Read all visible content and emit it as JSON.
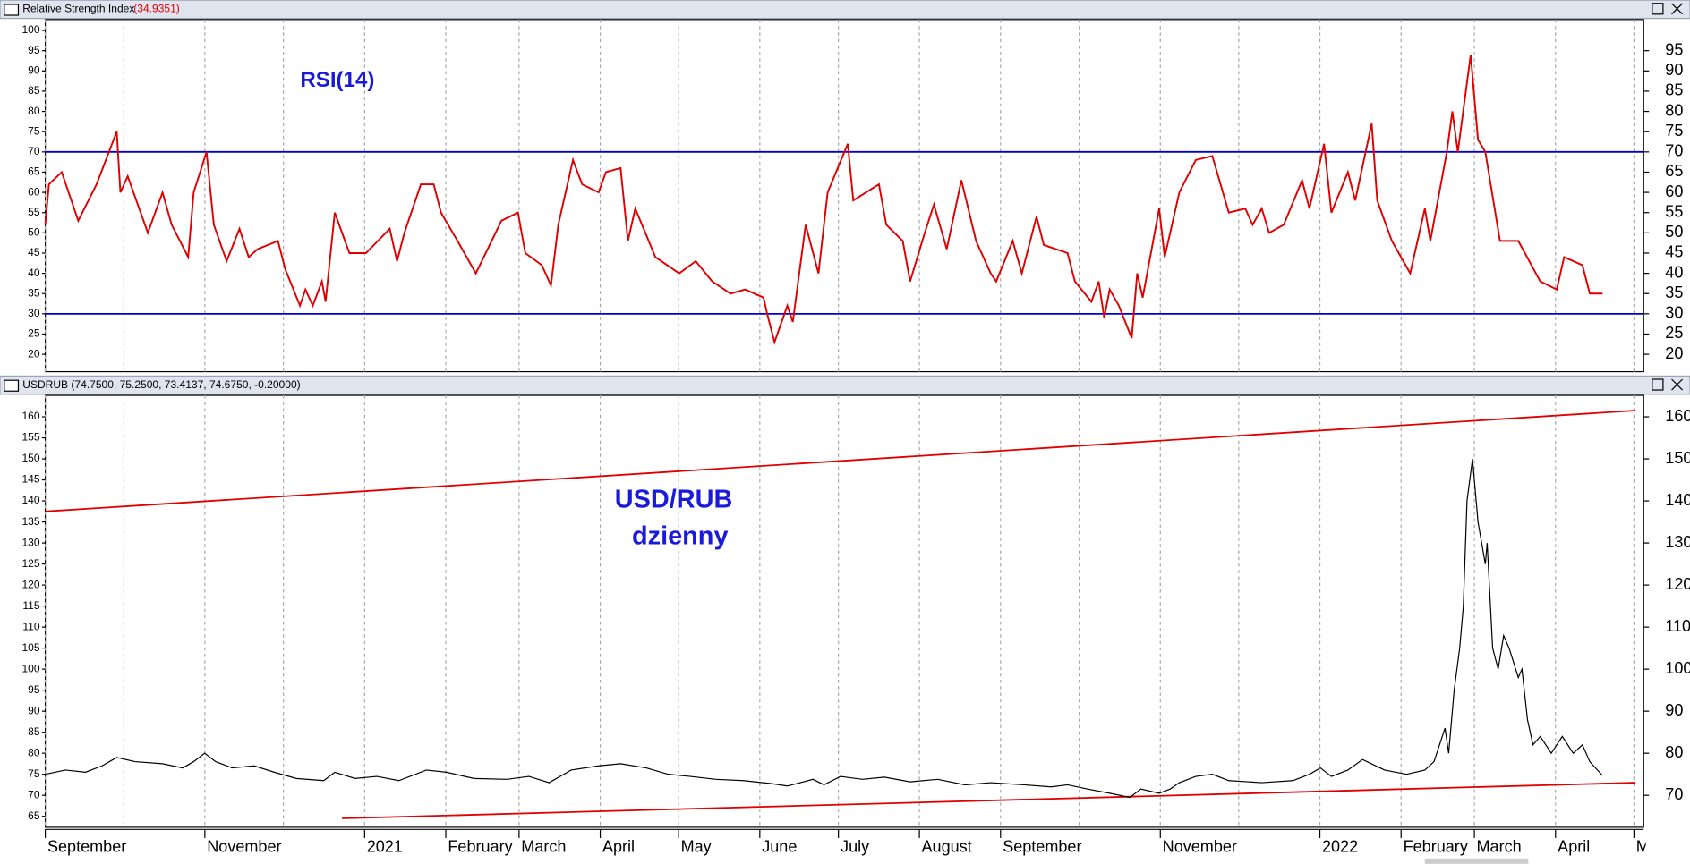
{
  "chart_data": [
    {
      "type": "line",
      "title": "Relative Strength Index",
      "title_value": "(34.9351)",
      "annotation": "RSI(14)",
      "ylim": [
        15.7,
        102.7
      ],
      "yticks": [
        20,
        25,
        30,
        35,
        40,
        45,
        50,
        55,
        60,
        65,
        70,
        75,
        80,
        85,
        90,
        95,
        100
      ],
      "y2lim": [
        15.7,
        102.7
      ],
      "y2ticks": [
        20,
        25,
        30,
        35,
        40,
        45,
        50,
        55,
        60,
        65,
        70,
        75,
        80,
        85,
        90,
        95
      ],
      "hlines": [
        70,
        30
      ],
      "hline_color": "#0000cc",
      "xlim": [
        0,
        87.24
      ],
      "series": [
        {
          "name": "RSI",
          "color": "#e00000",
          "x": [
            0,
            0.2,
            0.9,
            1.8,
            2.8,
            3.9,
            4.1,
            4.5,
            5.6,
            6.4,
            6.9,
            7.8,
            8.1,
            8.8,
            9.2,
            9.9,
            10.6,
            11.1,
            11.6,
            12.7,
            13.1,
            13.9,
            14.2,
            14.6,
            15.1,
            15.3,
            15.8,
            16.6,
            17.5,
            18.8,
            19.2,
            19.6,
            20.5,
            21.2,
            21.6,
            22.5,
            23.5,
            24.9,
            25.8,
            26.2,
            27.1,
            27.6,
            28.0,
            28.8,
            29.3,
            30.2,
            30.6,
            31.4,
            31.8,
            32.2,
            33.3,
            34.6,
            35.5,
            36.4,
            37.4,
            38.2,
            39.2,
            39.4,
            39.8,
            40.5,
            40.8,
            41.5,
            42.2,
            42.7,
            43.8,
            44.1,
            45.5,
            45.9,
            46.8,
            47.2,
            48.0,
            48.5,
            49.2,
            50.0,
            50.8,
            51.6,
            51.9,
            52.8,
            53.3,
            54.1,
            54.5,
            55.8,
            56.2,
            57.1,
            57.5,
            57.8,
            58.1,
            58.6,
            59.3,
            59.6,
            59.9,
            60.8,
            61.1,
            61.9,
            62.8,
            63.7,
            64.6,
            65.5,
            65.9,
            66.4,
            66.8,
            67.6,
            68.6,
            69.0,
            69.8,
            70.2,
            71.1,
            71.5,
            72.4,
            72.7,
            73.5,
            74.5,
            75.3,
            75.6,
            76.5,
            76.8,
            77.1,
            77.8,
            78.2,
            78.6,
            79.4,
            80.4,
            81.6,
            82.5,
            82.9,
            83.9,
            84.3,
            85.0
          ],
          "values": [
            52,
            62,
            65,
            53,
            62,
            75,
            60,
            64,
            50,
            60,
            52,
            44,
            60,
            70,
            52,
            43,
            51,
            44,
            46,
            48,
            41,
            32,
            36,
            32,
            38,
            33,
            55,
            45,
            45,
            51,
            43,
            50,
            62,
            62,
            55,
            48,
            40,
            53,
            55,
            45,
            42,
            37,
            52,
            68,
            62,
            60,
            65,
            66,
            48,
            56,
            44,
            40,
            43,
            38,
            35,
            36,
            34,
            30,
            23,
            32,
            28,
            52,
            40,
            60,
            72,
            58,
            62,
            52,
            48,
            38,
            50,
            57,
            46,
            63,
            48,
            40,
            38,
            48,
            40,
            54,
            47,
            45,
            38,
            33,
            38,
            29,
            36,
            32,
            24,
            40,
            34,
            56,
            44,
            60,
            68,
            69,
            55,
            56,
            52,
            56,
            50,
            52,
            63,
            56,
            72,
            55,
            65,
            58,
            77,
            58,
            48,
            40,
            56,
            48,
            70,
            80,
            70,
            94,
            73,
            70,
            48,
            48,
            38,
            36,
            44,
            42,
            35,
            35
          ]
        }
      ]
    },
    {
      "type": "line",
      "title": "USDRUB (74.7500, 75.2500, 73.4137, 74.6750, -0.20000)",
      "annotation": [
        "USD/RUB",
        "dzienny"
      ],
      "ylim": [
        62.4,
        165.1
      ],
      "yticks": [
        65,
        70,
        75,
        80,
        85,
        90,
        95,
        100,
        105,
        110,
        115,
        120,
        125,
        130,
        135,
        140,
        145,
        150,
        155,
        160
      ],
      "y2lim": [
        62.4,
        165.1
      ],
      "y2ticks": [
        70,
        80,
        90,
        100,
        110,
        120,
        130,
        140,
        150,
        160
      ],
      "xlim": [
        0,
        87.24
      ],
      "xticks": [
        {
          "value": 0,
          "label": "September"
        },
        {
          "value": 8.71,
          "label": "November"
        },
        {
          "value": 17.43,
          "label": "2021"
        },
        {
          "value": 21.86,
          "label": "February"
        },
        {
          "value": 25.86,
          "label": "March"
        },
        {
          "value": 30.29,
          "label": "April"
        },
        {
          "value": 34.57,
          "label": "May"
        },
        {
          "value": 39.0,
          "label": "June"
        },
        {
          "value": 43.29,
          "label": "July"
        },
        {
          "value": 47.71,
          "label": "August"
        },
        {
          "value": 52.14,
          "label": "September"
        },
        {
          "value": 60.86,
          "label": "November"
        },
        {
          "value": 69.57,
          "label": "2022"
        },
        {
          "value": 74.0,
          "label": "February"
        },
        {
          "value": 78.0,
          "label": "March"
        },
        {
          "value": 82.43,
          "label": "April"
        },
        {
          "value": 86.71,
          "label": "May"
        }
      ],
      "xminor": [
        4.29,
        13.0,
        56.43,
        65.14
      ],
      "trendlines": [
        {
          "color": "#e00000",
          "x": [
            0,
            86.8
          ],
          "y": [
            137.5,
            161.5
          ]
        },
        {
          "color": "#e00000",
          "x": [
            16.2,
            86.8
          ],
          "y": [
            64.5,
            73
          ]
        }
      ],
      "series": [
        {
          "name": "USDRUB",
          "color": "#000000",
          "x": [
            0,
            1.1,
            2.2,
            3.1,
            3.9,
            4.9,
            6.4,
            7.5,
            8.1,
            8.7,
            9.3,
            10.2,
            11.4,
            12.5,
            13.7,
            15.2,
            15.8,
            16.9,
            18.1,
            19.3,
            20.8,
            21.9,
            23.4,
            25.2,
            26.4,
            27.5,
            28.7,
            30.2,
            31.4,
            32.8,
            34.0,
            35.2,
            36.6,
            38.1,
            39.6,
            40.5,
            41.9,
            42.5,
            43.4,
            44.6,
            45.8,
            47.2,
            48.7,
            50.2,
            51.6,
            53.4,
            54.9,
            55.8,
            56.9,
            58.1,
            59.2,
            59.8,
            60.8,
            61.4,
            61.9,
            62.8,
            63.7,
            64.6,
            66.4,
            68.1,
            69.0,
            69.6,
            70.2,
            71.1,
            71.9,
            73.1,
            74.3,
            75.3,
            75.8,
            76.4,
            76.6,
            76.9,
            77.2,
            77.4,
            77.6,
            77.9,
            78.2,
            78.6,
            78.7,
            79.0,
            79.3,
            79.6,
            79.9,
            80.4,
            80.6,
            80.9,
            81.2,
            81.6,
            82.2,
            82.5,
            82.8,
            83.4,
            83.9,
            84.3,
            85.0
          ],
          "values": [
            75,
            76,
            75.5,
            77,
            79,
            78,
            77.5,
            76.5,
            78,
            80,
            78,
            76.5,
            77,
            75.5,
            74,
            73.5,
            75.5,
            74,
            74.5,
            73.5,
            76,
            75.5,
            74,
            73.8,
            74.5,
            73,
            76,
            77,
            77.5,
            76.5,
            75,
            74.5,
            73.8,
            73.5,
            72.8,
            72.2,
            73.8,
            72.5,
            74.5,
            73.8,
            74.3,
            73.2,
            73.8,
            72.5,
            73,
            72.5,
            72,
            72.5,
            71.5,
            70.5,
            69.5,
            71.5,
            70.5,
            71.5,
            73,
            74.5,
            75,
            73.5,
            73,
            73.5,
            75,
            76.5,
            74.5,
            76,
            78.5,
            76,
            75,
            76,
            78,
            86,
            80,
            95,
            105,
            115,
            140,
            150,
            135,
            125,
            130,
            105,
            100,
            108,
            105,
            98,
            100,
            88,
            82,
            84,
            80,
            82,
            84,
            80,
            82,
            78,
            74.7
          ]
        }
      ]
    }
  ]
}
